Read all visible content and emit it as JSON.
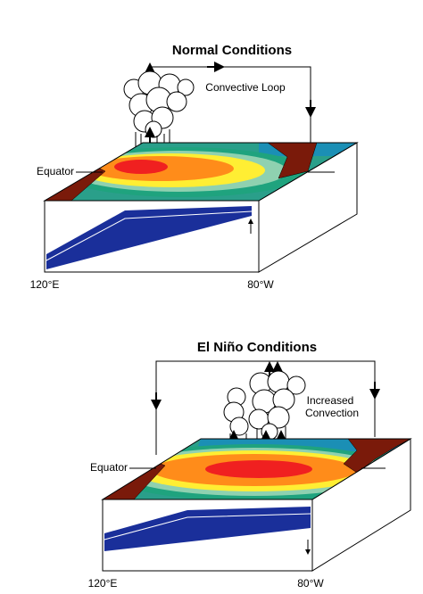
{
  "panels": [
    {
      "title": "Normal Conditions",
      "loop_label": [
        "Convective Loop"
      ],
      "equator_label": "Equator",
      "west_label": "120°E",
      "east_label": "80°W"
    },
    {
      "title": "El Niño Conditions",
      "loop_label": [
        "Increased",
        "Convection"
      ],
      "equator_label": "Equator",
      "west_label": "120°E",
      "east_label": "80°W"
    }
  ]
}
